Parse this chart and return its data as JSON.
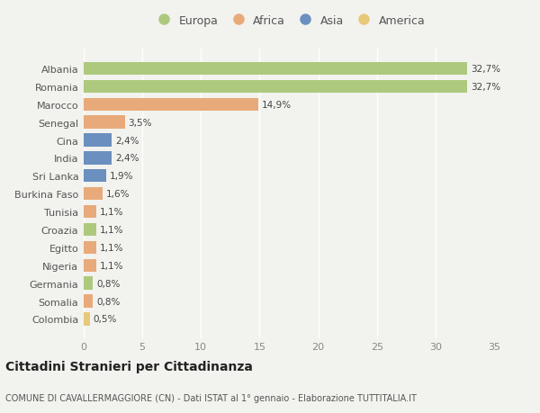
{
  "countries": [
    "Albania",
    "Romania",
    "Marocco",
    "Senegal",
    "Cina",
    "India",
    "Sri Lanka",
    "Burkina Faso",
    "Tunisia",
    "Croazia",
    "Egitto",
    "Nigeria",
    "Germania",
    "Somalia",
    "Colombia"
  ],
  "values": [
    32.7,
    32.7,
    14.9,
    3.5,
    2.4,
    2.4,
    1.9,
    1.6,
    1.1,
    1.1,
    1.1,
    1.1,
    0.8,
    0.8,
    0.5
  ],
  "labels": [
    "32,7%",
    "32,7%",
    "14,9%",
    "3,5%",
    "2,4%",
    "2,4%",
    "1,9%",
    "1,6%",
    "1,1%",
    "1,1%",
    "1,1%",
    "1,1%",
    "0,8%",
    "0,8%",
    "0,5%"
  ],
  "continents": [
    "Europa",
    "Europa",
    "Africa",
    "Africa",
    "Asia",
    "Asia",
    "Asia",
    "Africa",
    "Africa",
    "Europa",
    "Africa",
    "Africa",
    "Europa",
    "Africa",
    "America"
  ],
  "continent_colors": {
    "Europa": "#adc97e",
    "Africa": "#e8aa7a",
    "Asia": "#6b8fbf",
    "America": "#e8c87a"
  },
  "legend_order": [
    "Europa",
    "Africa",
    "Asia",
    "America"
  ],
  "title": "Cittadini Stranieri per Cittadinanza",
  "subtitle": "COMUNE DI CAVALLERMAGGIORE (CN) - Dati ISTAT al 1° gennaio - Elaborazione TUTTITALIA.IT",
  "xlim": [
    0,
    35
  ],
  "xticks": [
    0,
    5,
    10,
    15,
    20,
    25,
    30,
    35
  ],
  "background_color": "#f2f2ee",
  "bar_height": 0.72
}
